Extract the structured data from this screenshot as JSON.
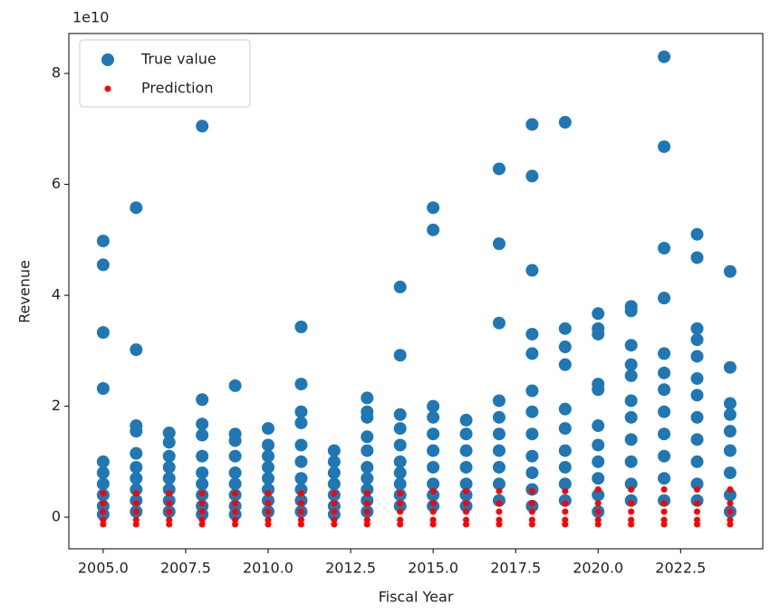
{
  "chart_data": {
    "type": "scatter",
    "x_label": "Fiscal Year",
    "y_label": "Revenue",
    "y_offset_label": "1e10",
    "xlim": [
      2003.96,
      2024.99
    ],
    "ylim": [
      -0.57,
      8.72
    ],
    "xticks": [
      {
        "value": 2005,
        "label": "2005.0"
      },
      {
        "value": 2007.5,
        "label": "2007.5"
      },
      {
        "value": 2010,
        "label": "2010.0"
      },
      {
        "value": 2012.5,
        "label": "2012.5"
      },
      {
        "value": 2015,
        "label": "2015.0"
      },
      {
        "value": 2017.5,
        "label": "2017.5"
      },
      {
        "value": 2020,
        "label": "2020.0"
      },
      {
        "value": 2022.5,
        "label": "2022.5"
      }
    ],
    "yticks": [
      0,
      2,
      4,
      6,
      8
    ],
    "legend": "upper left",
    "series": [
      {
        "name": "True value",
        "color": "#1f77b4",
        "marker_size": 7,
        "x": [
          2005,
          2005,
          2005,
          2005,
          2005,
          2005,
          2005,
          2005,
          2005,
          2005,
          2006,
          2006,
          2006,
          2006,
          2006,
          2006,
          2006,
          2006,
          2006,
          2006,
          2007,
          2007,
          2007,
          2007,
          2007,
          2007,
          2007,
          2007,
          2008,
          2008,
          2008,
          2008,
          2008,
          2008,
          2008,
          2008,
          2008,
          2008,
          2009,
          2009,
          2009,
          2009,
          2009,
          2009,
          2009,
          2009,
          2009,
          2010,
          2010,
          2010,
          2010,
          2010,
          2010,
          2010,
          2010,
          2011,
          2011,
          2011,
          2011,
          2011,
          2011,
          2011,
          2011,
          2011,
          2011,
          2012,
          2012,
          2012,
          2012,
          2012,
          2012,
          2012,
          2013,
          2013,
          2013,
          2013,
          2013,
          2013,
          2013,
          2013,
          2013,
          2013,
          2014,
          2014,
          2014,
          2014,
          2014,
          2014,
          2014,
          2014,
          2014,
          2014,
          2015,
          2015,
          2015,
          2015,
          2015,
          2015,
          2015,
          2015,
          2015,
          2015,
          2016,
          2016,
          2016,
          2016,
          2016,
          2016,
          2016,
          2017,
          2017,
          2017,
          2017,
          2017,
          2017,
          2017,
          2017,
          2017,
          2017,
          2018,
          2018,
          2018,
          2018,
          2018,
          2018,
          2018,
          2018,
          2018,
          2018,
          2018,
          2018,
          2019,
          2019,
          2019,
          2019,
          2019,
          2019,
          2019,
          2019,
          2019,
          2019,
          2020,
          2020,
          2020,
          2020,
          2020,
          2020,
          2020,
          2020,
          2020,
          2020,
          2020,
          2021,
          2021,
          2021,
          2021,
          2021,
          2021,
          2021,
          2021,
          2021,
          2021,
          2021,
          2022,
          2022,
          2022,
          2022,
          2022,
          2022,
          2022,
          2022,
          2022,
          2022,
          2022,
          2022,
          2023,
          2023,
          2023,
          2023,
          2023,
          2023,
          2023,
          2023,
          2023,
          2023,
          2023,
          2023,
          2024,
          2024,
          2024,
          2024,
          2024,
          2024,
          2024,
          2024,
          2024
        ],
        "values": [
          4.98,
          4.55,
          3.33,
          2.32,
          1.0,
          0.8,
          0.6,
          0.4,
          0.2,
          0.05,
          5.58,
          3.02,
          1.65,
          1.55,
          1.15,
          0.9,
          0.7,
          0.5,
          0.3,
          0.1,
          1.52,
          1.35,
          1.1,
          0.9,
          0.7,
          0.5,
          0.3,
          0.1,
          7.05,
          2.12,
          1.68,
          1.48,
          1.1,
          0.8,
          0.6,
          0.4,
          0.2,
          0.05,
          2.37,
          1.5,
          1.38,
          1.1,
          0.8,
          0.6,
          0.4,
          0.2,
          0.05,
          1.6,
          1.3,
          1.1,
          0.9,
          0.7,
          0.5,
          0.3,
          0.1,
          3.43,
          2.4,
          1.9,
          1.7,
          1.3,
          1.0,
          0.7,
          0.5,
          0.3,
          0.1,
          1.2,
          1.0,
          0.8,
          0.6,
          0.4,
          0.2,
          0.05,
          2.15,
          1.9,
          1.8,
          1.45,
          1.2,
          0.9,
          0.7,
          0.5,
          0.3,
          0.1,
          4.15,
          2.92,
          1.85,
          1.6,
          1.3,
          1.0,
          0.8,
          0.6,
          0.4,
          0.2,
          5.58,
          5.18,
          2.0,
          1.8,
          1.5,
          1.2,
          0.9,
          0.6,
          0.4,
          0.2,
          1.75,
          1.5,
          1.2,
          0.9,
          0.6,
          0.4,
          0.2,
          6.28,
          4.93,
          3.5,
          2.1,
          1.8,
          1.5,
          1.2,
          0.9,
          0.6,
          0.3,
          7.08,
          6.15,
          4.45,
          3.3,
          2.95,
          2.28,
          1.9,
          1.5,
          1.1,
          0.8,
          0.5,
          0.2,
          7.12,
          3.4,
          3.07,
          2.75,
          1.95,
          1.6,
          1.2,
          0.9,
          0.6,
          0.3,
          3.67,
          3.4,
          3.3,
          2.4,
          2.3,
          1.65,
          1.3,
          1.0,
          0.7,
          0.4,
          0.1,
          3.8,
          3.72,
          3.1,
          2.75,
          2.55,
          2.1,
          1.8,
          1.4,
          1.0,
          0.6,
          0.3,
          8.3,
          6.68,
          4.85,
          3.95,
          2.95,
          2.6,
          2.3,
          1.9,
          1.5,
          1.1,
          0.7,
          0.3,
          5.1,
          4.68,
          3.4,
          3.2,
          2.9,
          2.5,
          2.2,
          1.8,
          1.4,
          1.0,
          0.6,
          0.3,
          4.43,
          2.7,
          2.05,
          1.85,
          1.55,
          1.2,
          0.8,
          0.4,
          0.1
        ]
      },
      {
        "name": "Prediction",
        "color": "#ff0000",
        "marker_size": 3.5,
        "x": [
          2005,
          2005,
          2005,
          2005,
          2005,
          2006,
          2006,
          2006,
          2006,
          2006,
          2007,
          2007,
          2007,
          2007,
          2007,
          2008,
          2008,
          2008,
          2008,
          2008,
          2009,
          2009,
          2009,
          2009,
          2009,
          2010,
          2010,
          2010,
          2010,
          2010,
          2011,
          2011,
          2011,
          2011,
          2011,
          2012,
          2012,
          2012,
          2012,
          2012,
          2013,
          2013,
          2013,
          2013,
          2013,
          2014,
          2014,
          2014,
          2014,
          2014,
          2015,
          2015,
          2015,
          2015,
          2015,
          2016,
          2016,
          2016,
          2016,
          2016,
          2017,
          2017,
          2017,
          2017,
          2017,
          2018,
          2018,
          2018,
          2018,
          2018,
          2019,
          2019,
          2019,
          2019,
          2019,
          2020,
          2020,
          2020,
          2020,
          2020,
          2021,
          2021,
          2021,
          2021,
          2021,
          2022,
          2022,
          2022,
          2022,
          2022,
          2023,
          2023,
          2023,
          2023,
          2023,
          2024,
          2024,
          2024,
          2024,
          2024
        ],
        "values": [
          0.43,
          0.25,
          0.1,
          -0.05,
          -0.13,
          0.43,
          0.25,
          0.1,
          -0.05,
          -0.13,
          0.43,
          0.25,
          0.1,
          -0.05,
          -0.13,
          0.43,
          0.25,
          0.1,
          -0.05,
          -0.13,
          0.43,
          0.25,
          0.1,
          -0.05,
          -0.13,
          0.43,
          0.25,
          0.1,
          -0.05,
          -0.13,
          0.43,
          0.25,
          0.1,
          -0.05,
          -0.13,
          0.43,
          0.25,
          0.1,
          -0.05,
          -0.13,
          0.43,
          0.25,
          0.1,
          -0.05,
          -0.13,
          0.43,
          0.25,
          0.1,
          -0.05,
          -0.13,
          0.47,
          0.25,
          0.1,
          -0.05,
          -0.13,
          0.47,
          0.25,
          0.1,
          -0.05,
          -0.13,
          0.47,
          0.25,
          0.1,
          -0.05,
          -0.13,
          0.47,
          0.25,
          0.1,
          -0.05,
          -0.13,
          0.47,
          0.25,
          0.1,
          -0.05,
          -0.13,
          0.5,
          0.25,
          0.1,
          -0.05,
          -0.13,
          0.5,
          0.25,
          0.1,
          -0.05,
          -0.13,
          0.5,
          0.25,
          0.1,
          -0.05,
          -0.13,
          0.5,
          0.25,
          0.1,
          -0.05,
          -0.13,
          0.5,
          0.25,
          0.1,
          -0.05,
          -0.13
        ]
      }
    ]
  }
}
